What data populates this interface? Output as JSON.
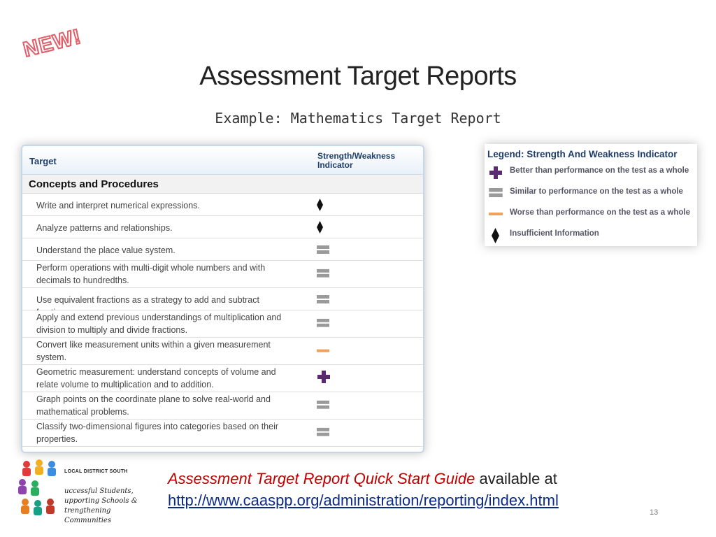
{
  "stamp": {
    "text": "NEW!"
  },
  "slide": {
    "title": "Assessment Target Reports",
    "subtitle": "Example: Mathematics Target Report",
    "page_number": "13"
  },
  "report": {
    "col_target": "Target",
    "col_indicator": "Strength/Weakness Indicator",
    "section": "Concepts and Procedures",
    "rows": [
      {
        "text": "Write and interpret numerical expressions.",
        "indicator": "insufficient-diamond-icon"
      },
      {
        "text": "Analyze patterns and relationships.",
        "indicator": "insufficient-diamond-icon"
      },
      {
        "text": "Understand the place value system.",
        "indicator": "similar-equal-icon"
      },
      {
        "text": "Perform operations with multi-digit whole numbers and with decimals to hundredths.",
        "indicator": "similar-equal-icon"
      },
      {
        "text": "Use equivalent fractions as a strategy to add and subtract fractions.",
        "indicator": "similar-equal-icon"
      },
      {
        "text": "Apply and extend previous understandings of multiplication and division to multiply and divide fractions.",
        "indicator": "similar-equal-icon"
      },
      {
        "text": "Convert like measurement units within a given measurement system.",
        "indicator": "worse-dash-icon"
      },
      {
        "text": "Geometric measurement: understand concepts of volume and relate volume to multiplication and to addition.",
        "indicator": "better-plus-icon"
      },
      {
        "text": "Graph points on the coordinate plane to solve real-world and mathematical problems.",
        "indicator": "similar-equal-icon"
      },
      {
        "text": "Classify two-dimensional figures into categories based on their properties.",
        "indicator": "similar-equal-icon"
      }
    ]
  },
  "legend": {
    "title": "Legend: Strength And Weakness Indicator",
    "items": [
      {
        "label": "Better than performance on the test as a whole",
        "icon": "better-plus-icon",
        "color": "#5b2b6f"
      },
      {
        "label": "Similar to performance on the test as a whole",
        "icon": "similar-equal-icon",
        "color": "#9a9a9a"
      },
      {
        "label": "Worse than performance on the test as a whole",
        "icon": "worse-dash-icon",
        "color": "#f0a25a"
      },
      {
        "label": "Insufficient Information",
        "icon": "insufficient-diamond-icon",
        "color": "#111111"
      }
    ]
  },
  "footer": {
    "logo_brand": "LOCAL DISTRICT SOUTH",
    "logo_lines": [
      "uccessful Students,",
      "upporting Schools &",
      "trengthening Communities"
    ],
    "guide_title": "Assessment Target Report Quick Start Guide",
    "guide_suffix": " available at",
    "guide_link": "http://www.caaspp.org/administration/reporting/index.html"
  }
}
